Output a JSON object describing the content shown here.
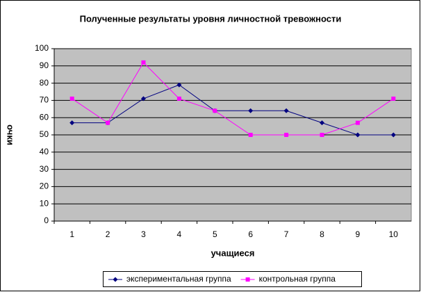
{
  "chart_data": {
    "type": "line",
    "title": "Полученные результаты уровня личностной тревожности",
    "x_label": "учащиеся",
    "y_label": "очки",
    "categories": [
      "1",
      "2",
      "3",
      "4",
      "5",
      "6",
      "7",
      "8",
      "9",
      "10"
    ],
    "series": [
      {
        "name": "экспериментальная группа",
        "color": "#000080",
        "marker": "diamond",
        "values": [
          57,
          57,
          71,
          79,
          64,
          64,
          64,
          57,
          50,
          50
        ]
      },
      {
        "name": "контрольная группа",
        "color": "#ff00ff",
        "marker": "square",
        "values": [
          71,
          57,
          92,
          71,
          64,
          50,
          50,
          50,
          57,
          71
        ]
      }
    ],
    "ylim": [
      0,
      100
    ],
    "yticks": [
      0,
      10,
      20,
      30,
      40,
      50,
      60,
      70,
      80,
      90,
      100
    ],
    "grid": true,
    "plot_background": "#c0c0c0",
    "legend": "bottom"
  }
}
